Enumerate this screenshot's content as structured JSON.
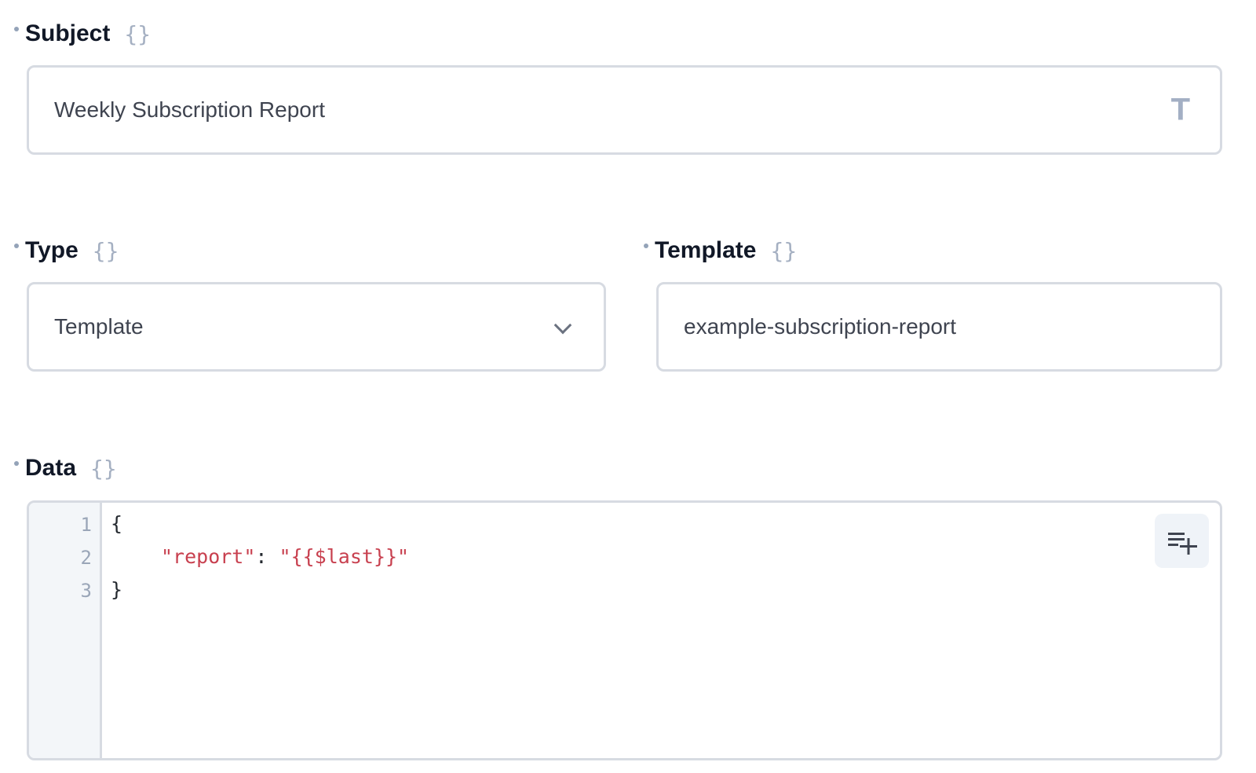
{
  "subject": {
    "label": "Subject",
    "brace": "{}",
    "value": "Weekly Subscription Report",
    "icon": "text-type-icon",
    "icon_glyph": "T"
  },
  "type": {
    "label": "Type",
    "brace": "{}",
    "value": "Template",
    "icon": "chevron-down-icon"
  },
  "template": {
    "label": "Template",
    "brace": "{}",
    "value": "example-subscription-report"
  },
  "data": {
    "label": "Data",
    "brace": "{}",
    "line_numbers": [
      "1",
      "2",
      "3"
    ],
    "lines": {
      "l1": "{",
      "l2_key": "\"report\"",
      "l2_colon": ": ",
      "l2_value": "\"{{$last}}\"",
      "l3": "}"
    },
    "format_button_icon": "add-line-icon"
  },
  "colors": {
    "string": "#c8404f",
    "border": "#d7dbe2"
  }
}
